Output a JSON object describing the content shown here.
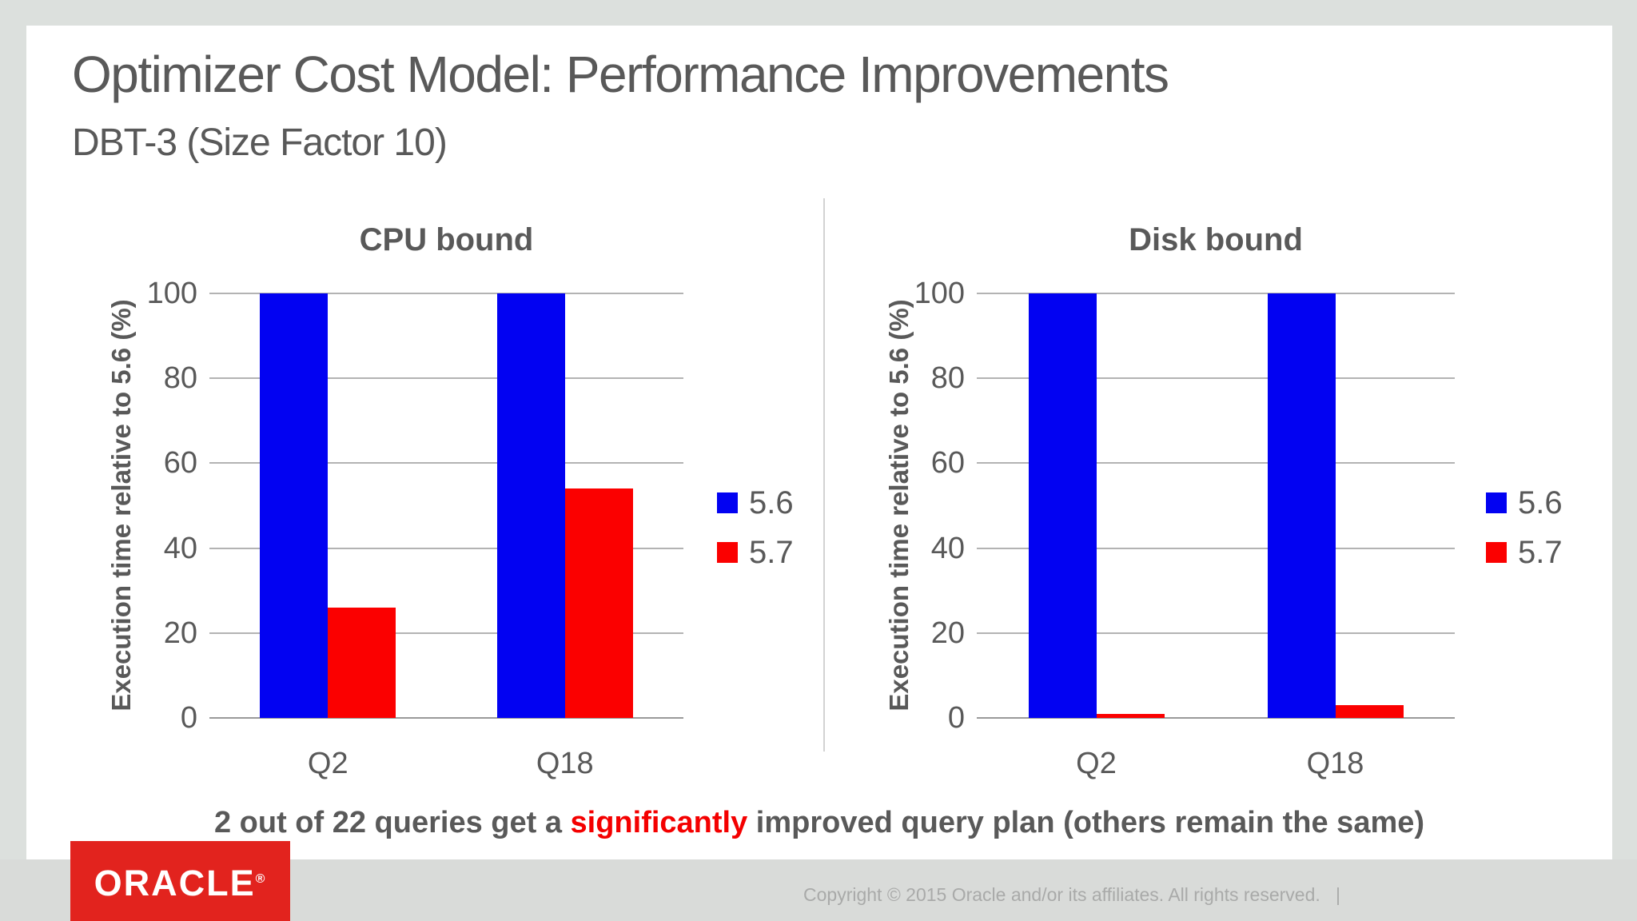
{
  "slide": {
    "title": "Optimizer Cost Model: Performance Improvements",
    "subtitle": "DBT-3 (Size Factor 10)",
    "footnote": {
      "prefix": "2 out of 22 queries get a ",
      "highlight": "significantly",
      "suffix": " improved query plan (others remain the same)",
      "highlight_color": "#f40000"
    },
    "logo_text": "ORACLE",
    "logo_registered": "®",
    "copyright": "Copyright © 2015 Oracle and/or its affiliates. All rights reserved.   |"
  },
  "colors": {
    "series_56_blue": "#0202f2",
    "series_57_red": "#fb0000",
    "text_gray": "#595959",
    "gridline_gray": "#b3b3b3",
    "axis_gray": "#9a9a9a",
    "oracle_logo_red": "#e2231e",
    "slide_background": "#ffffff",
    "frame_background": "#dce0dd"
  },
  "chart_data": [
    {
      "type": "bar",
      "title": "CPU bound",
      "categories": [
        "Q2",
        "Q18"
      ],
      "series": [
        {
          "name": "5.6",
          "color": "#0202f2",
          "values": [
            100,
            100
          ]
        },
        {
          "name": "5.7",
          "color": "#fb0000",
          "values": [
            26,
            54
          ]
        }
      ],
      "xlabel": "",
      "ylabel": "Execution time relative to 5.6 (%)",
      "yticks": [
        0,
        20,
        40,
        60,
        80,
        100
      ],
      "ylim": [
        0,
        100
      ],
      "grid": true,
      "legend_position": "right"
    },
    {
      "type": "bar",
      "title": "Disk bound",
      "categories": [
        "Q2",
        "Q18"
      ],
      "series": [
        {
          "name": "5.6",
          "color": "#0202f2",
          "values": [
            100,
            100
          ]
        },
        {
          "name": "5.7",
          "color": "#fb0000",
          "values": [
            1,
            3
          ]
        }
      ],
      "xlabel": "",
      "ylabel": "Execution time relative to 5.6 (%)",
      "yticks": [
        0,
        20,
        40,
        60,
        80,
        100
      ],
      "ylim": [
        0,
        100
      ],
      "grid": true,
      "legend_position": "right"
    }
  ]
}
